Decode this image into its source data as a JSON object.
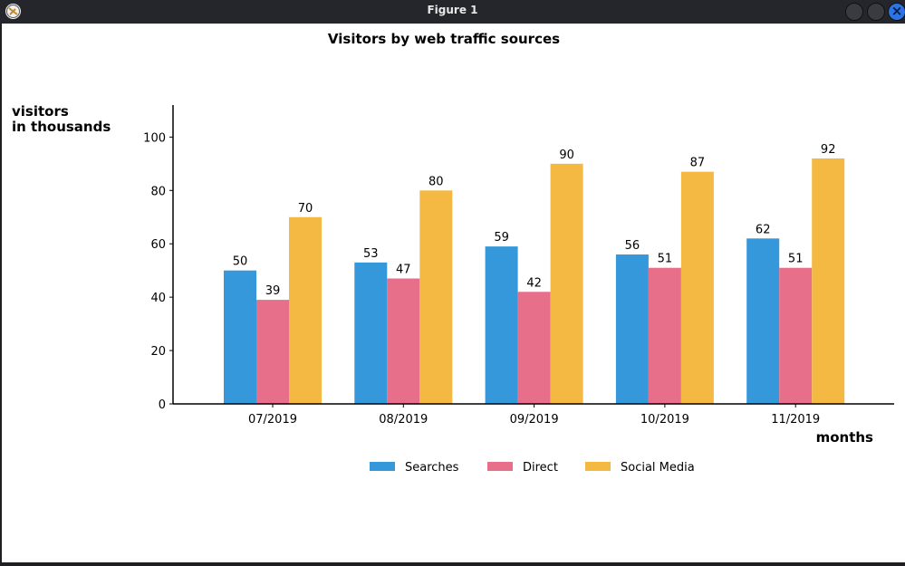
{
  "window": {
    "title": "Figure 1"
  },
  "chart_data": {
    "type": "bar",
    "title": "Visitors by web traffic sources",
    "xlabel": "months",
    "ylabel": "visitors\nin thousands",
    "categories": [
      "07/2019",
      "08/2019",
      "09/2019",
      "10/2019",
      "11/2019"
    ],
    "series": [
      {
        "name": "Searches",
        "color": "#3498db",
        "values": [
          50,
          53,
          59,
          56,
          62
        ]
      },
      {
        "name": "Direct",
        "color": "#e86f89",
        "values": [
          39,
          47,
          42,
          51,
          51
        ]
      },
      {
        "name": "Social Media",
        "color": "#f4b942",
        "values": [
          70,
          80,
          90,
          87,
          92
        ]
      }
    ],
    "ylim": [
      0,
      112
    ],
    "yticks": [
      0,
      20,
      40,
      60,
      80,
      100
    ],
    "grid": false,
    "legend": "bottom-center"
  }
}
